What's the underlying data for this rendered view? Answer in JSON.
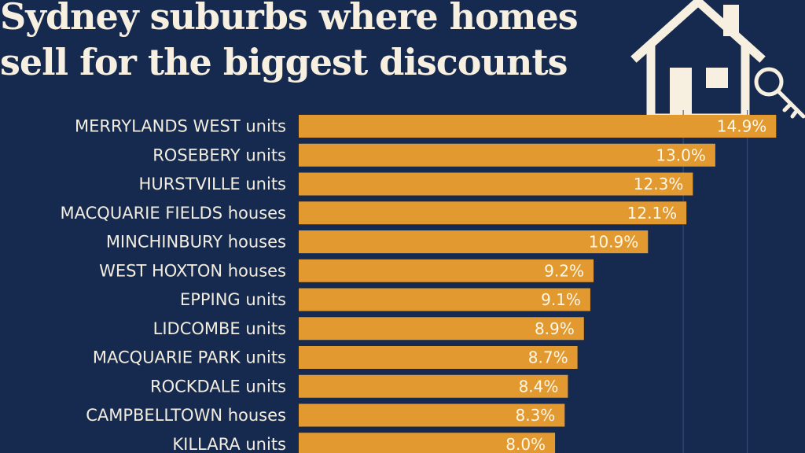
{
  "title": {
    "line1": "Sydney suburbs where homes",
    "line2": "sell for the biggest discounts"
  },
  "colors": {
    "background": "#152a4e",
    "bar": "#e29a30",
    "text": "#f3ede0"
  },
  "icons": [
    "house-icon",
    "key-icon"
  ],
  "chart_data": {
    "type": "bar",
    "orientation": "horizontal",
    "categories": [
      "MERRYLANDS WEST units",
      "ROSEBERY units",
      "HURSTVILLE units",
      "MACQUARIE FIELDS houses",
      "MINCHINBURY houses",
      "WEST HOXTON houses",
      "EPPING units",
      "LIDCOMBE units",
      "MACQUARIE PARK units",
      "ROCKDALE units",
      "CAMPBELLTOWN houses",
      "KILLARA units"
    ],
    "values": [
      14.9,
      13.0,
      12.3,
      12.1,
      10.9,
      9.2,
      9.1,
      8.9,
      8.7,
      8.4,
      8.3,
      8.0
    ],
    "value_labels": [
      "14.9%",
      "13.0%",
      "12.3%",
      "12.1%",
      "10.9%",
      "9.2%",
      "9.1%",
      "8.9%",
      "8.7%",
      "8.4%",
      "8.3%",
      "8.0%"
    ],
    "xlim": [
      0,
      15.8
    ],
    "grid": true
  }
}
